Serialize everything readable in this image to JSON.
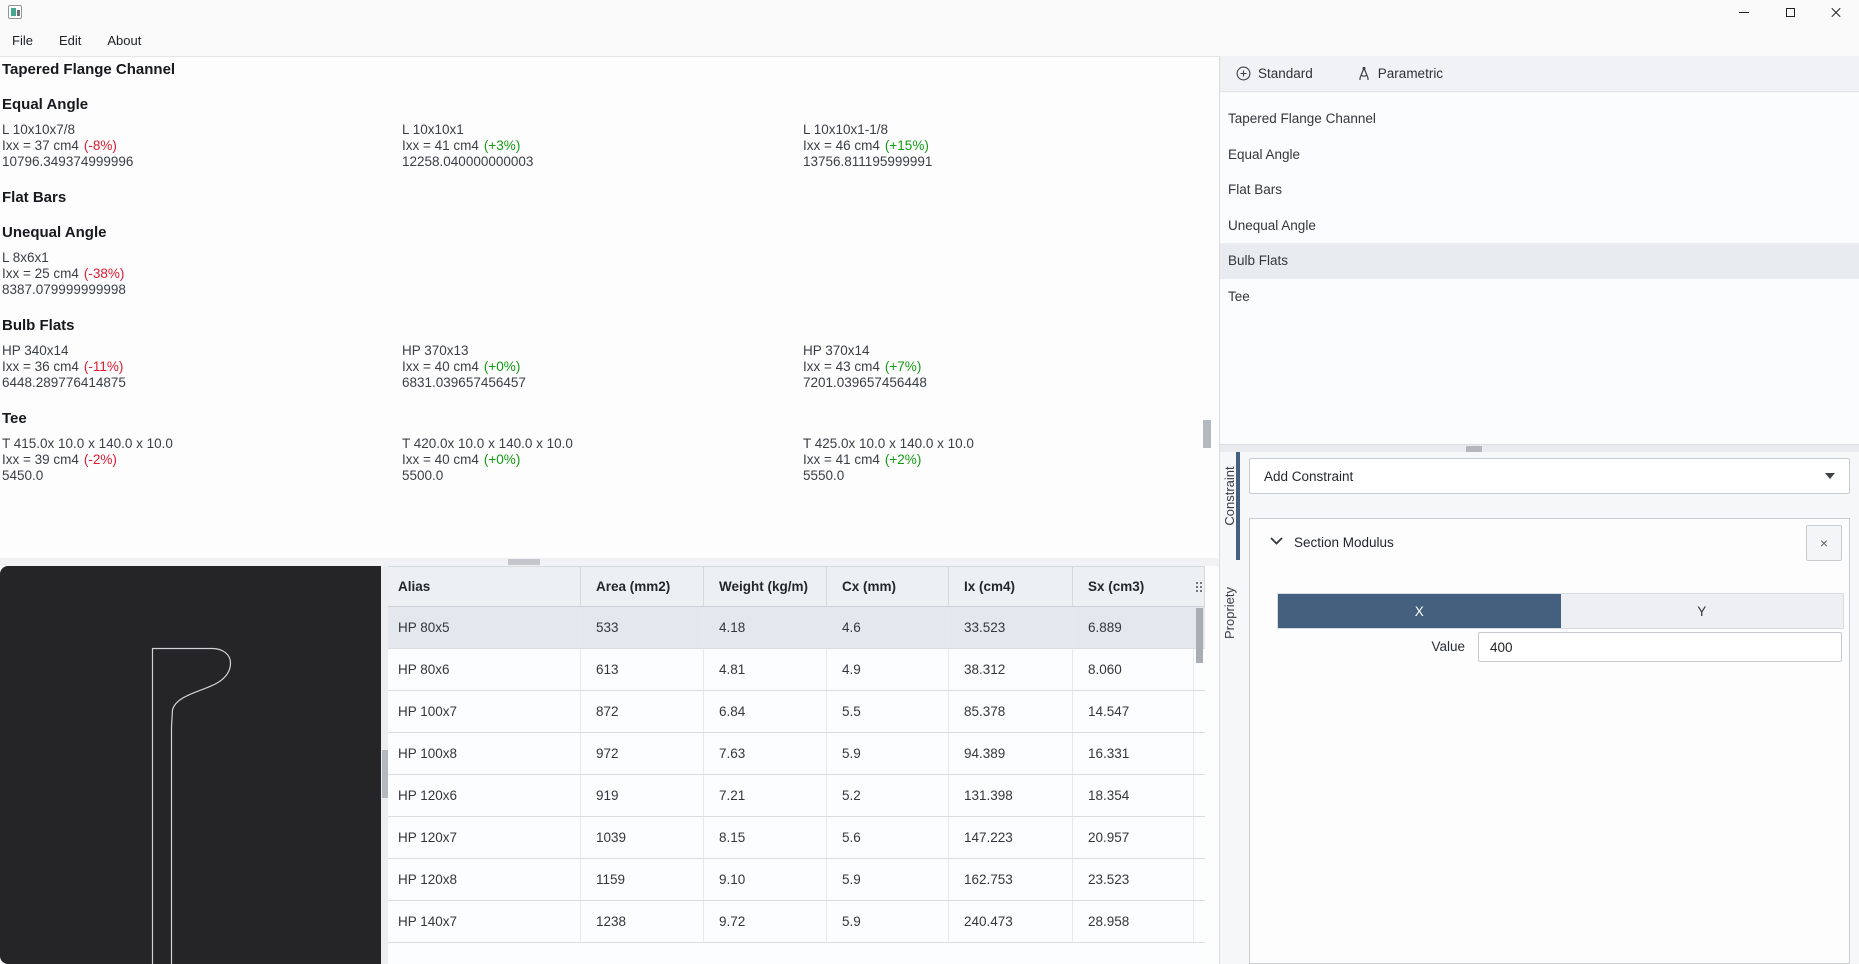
{
  "window": {
    "controls": {
      "minimize": "minimize",
      "maximize": "maximize",
      "close": "close"
    }
  },
  "menu": {
    "items": [
      "File",
      "Edit",
      "About"
    ]
  },
  "report": {
    "sections": [
      {
        "title": "Tapered Flange Channel",
        "entries": []
      },
      {
        "title": "Equal Angle",
        "entries": [
          {
            "name": "L 10x10x7/8",
            "ixx": "Ixx = 37 cm4",
            "delta": "(-8%)",
            "trend": "neg",
            "raw": "10796.349374999996"
          },
          {
            "name": "L 10x10x1",
            "ixx": "Ixx = 41 cm4",
            "delta": "(+3%)",
            "trend": "pos",
            "raw": "12258.040000000003"
          },
          {
            "name": "L 10x10x1-1/8",
            "ixx": "Ixx = 46 cm4",
            "delta": "(+15%)",
            "trend": "pos",
            "raw": "13756.811195999991"
          }
        ]
      },
      {
        "title": "Flat Bars",
        "entries": []
      },
      {
        "title": "Unequal Angle",
        "entries": [
          {
            "name": "L 8x6x1",
            "ixx": "Ixx = 25 cm4",
            "delta": "(-38%)",
            "trend": "neg",
            "raw": "8387.079999999998"
          }
        ]
      },
      {
        "title": "Bulb Flats",
        "entries": [
          {
            "name": "HP 340x14",
            "ixx": "Ixx = 36 cm4",
            "delta": "(-11%)",
            "trend": "neg",
            "raw": "6448.289776414875"
          },
          {
            "name": "HP 370x13",
            "ixx": "Ixx = 40 cm4",
            "delta": "(+0%)",
            "trend": "pos",
            "raw": "6831.039657456457"
          },
          {
            "name": "HP 370x14",
            "ixx": "Ixx = 43 cm4",
            "delta": "(+7%)",
            "trend": "pos",
            "raw": "7201.039657456448"
          }
        ]
      },
      {
        "title": "Tee",
        "entries": [
          {
            "name": "T 415.0x 10.0 x 140.0 x 10.0",
            "ixx": "Ixx = 39 cm4",
            "delta": "(-2%)",
            "trend": "neg",
            "raw": "5450.0"
          },
          {
            "name": "T 420.0x 10.0 x 140.0 x 10.0",
            "ixx": "Ixx = 40 cm4",
            "delta": "(+0%)",
            "trend": "pos",
            "raw": "5500.0"
          },
          {
            "name": "T 425.0x 10.0 x 140.0 x 10.0",
            "ixx": "Ixx = 41 cm4",
            "delta": "(+2%)",
            "trend": "pos",
            "raw": "5550.0"
          }
        ]
      }
    ]
  },
  "table": {
    "columns": [
      "Alias",
      "Area (mm2)",
      "Weight (kg/m)",
      "Cx (mm)",
      "Ix (cm4)",
      "Sx (cm3)"
    ],
    "rows": [
      {
        "alias": "HP 80x5",
        "values": [
          "533",
          "4.18",
          "4.6",
          "33.523",
          "6.889"
        ],
        "selected": true
      },
      {
        "alias": "HP 80x6",
        "values": [
          "613",
          "4.81",
          "4.9",
          "38.312",
          "8.060"
        ],
        "selected": false
      },
      {
        "alias": "HP 100x7",
        "values": [
          "872",
          "6.84",
          "5.5",
          "85.378",
          "14.547"
        ],
        "selected": false
      },
      {
        "alias": "HP 100x8",
        "values": [
          "972",
          "7.63",
          "5.9",
          "94.389",
          "16.331"
        ],
        "selected": false
      },
      {
        "alias": "HP 120x6",
        "values": [
          "919",
          "7.21",
          "5.2",
          "131.398",
          "18.354"
        ],
        "selected": false
      },
      {
        "alias": "HP 120x7",
        "values": [
          "1039",
          "8.15",
          "5.6",
          "147.223",
          "20.957"
        ],
        "selected": false
      },
      {
        "alias": "HP 120x8",
        "values": [
          "1159",
          "9.10",
          "5.9",
          "162.753",
          "23.523"
        ],
        "selected": false
      },
      {
        "alias": "HP 140x7",
        "values": [
          "1238",
          "9.72",
          "5.9",
          "240.473",
          "28.958"
        ],
        "selected": false
      }
    ]
  },
  "catalog": {
    "tabs": [
      {
        "label": "Standard"
      },
      {
        "label": "Parametric"
      }
    ],
    "items": [
      "Tapered Flange Channel",
      "Equal Angle",
      "Flat Bars",
      "Unequal Angle",
      "Bulb Flats",
      "Tee"
    ],
    "selected": "Bulb Flats"
  },
  "side_tabs": {
    "constraint": "Constraint",
    "propriety": "Propriety"
  },
  "constraint_panel": {
    "add_constraint_label": "Add Constraint",
    "section_modulus": {
      "title": "Section Modulus",
      "close_glyph": "×",
      "axis_x": "X",
      "axis_y": "Y",
      "value_label": "Value",
      "value": "400"
    }
  },
  "icons": {
    "app": "app-logo",
    "minimize": "horizontal-bar",
    "maximize": "square-outline",
    "close": "x-cross",
    "standard_tab": "circle-plus",
    "parametric_tab": "parametric-compass",
    "table_options": "dots-grid",
    "add_constraint": "caret-down",
    "section_modulus_collapse": "chevron-down"
  },
  "colors": {
    "accent": "#44607e",
    "negative": "#e0192d",
    "positive": "#109c10",
    "selected_row": "#e2e8ee",
    "canvas_bg": "#252528",
    "profile_stroke": "#d2d2d4"
  }
}
